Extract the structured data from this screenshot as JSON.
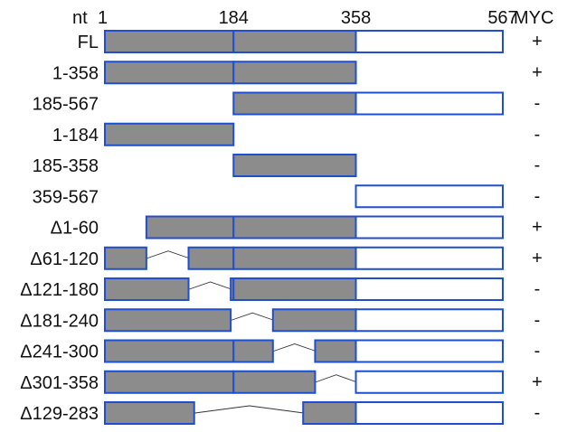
{
  "colors": {
    "filled": "#8c8c8c",
    "empty": "#ffffff",
    "border": "#1f4fd1",
    "connector": "#333333",
    "text": "#111111"
  },
  "header": {
    "prefix": "nt",
    "ticks": [
      {
        "pos": 1,
        "label": "1"
      },
      {
        "pos": 184,
        "label": "184"
      },
      {
        "pos": 358,
        "label": "358"
      },
      {
        "pos": 567,
        "label": "567"
      }
    ],
    "result_column": "MYC"
  },
  "regions": {
    "filled_end": 358,
    "region_bounds": [
      184,
      358
    ],
    "total": 567
  },
  "constructs": [
    {
      "label": "FL",
      "segments": [
        [
          1,
          567
        ]
      ],
      "result": "+"
    },
    {
      "label": "1-358",
      "segments": [
        [
          1,
          358
        ]
      ],
      "result": "+"
    },
    {
      "label": "185-567",
      "segments": [
        [
          185,
          567
        ]
      ],
      "result": "-"
    },
    {
      "label": "1-184",
      "segments": [
        [
          1,
          184
        ]
      ],
      "result": "-"
    },
    {
      "label": "185-358",
      "segments": [
        [
          185,
          358
        ]
      ],
      "result": "-"
    },
    {
      "label": "359-567",
      "segments": [
        [
          359,
          567
        ]
      ],
      "result": "-"
    },
    {
      "label": "Δ1-60",
      "segments": [
        [
          61,
          567
        ]
      ],
      "result": "+"
    },
    {
      "label": "Δ61-120",
      "segments": [
        [
          1,
          60
        ],
        [
          121,
          567
        ]
      ],
      "result": "+"
    },
    {
      "label": "Δ121-180",
      "segments": [
        [
          1,
          120
        ],
        [
          181,
          567
        ]
      ],
      "result": "-"
    },
    {
      "label": "Δ181-240",
      "segments": [
        [
          1,
          180
        ],
        [
          241,
          567
        ]
      ],
      "result": "-"
    },
    {
      "label": "Δ241-300",
      "segments": [
        [
          1,
          240
        ],
        [
          301,
          567
        ]
      ],
      "result": "-"
    },
    {
      "label": "Δ301-358",
      "segments": [
        [
          1,
          300
        ],
        [
          359,
          567
        ]
      ],
      "result": "+"
    },
    {
      "label": "Δ129-283",
      "segments": [
        [
          1,
          128
        ],
        [
          284,
          567
        ]
      ],
      "result": "-"
    }
  ]
}
